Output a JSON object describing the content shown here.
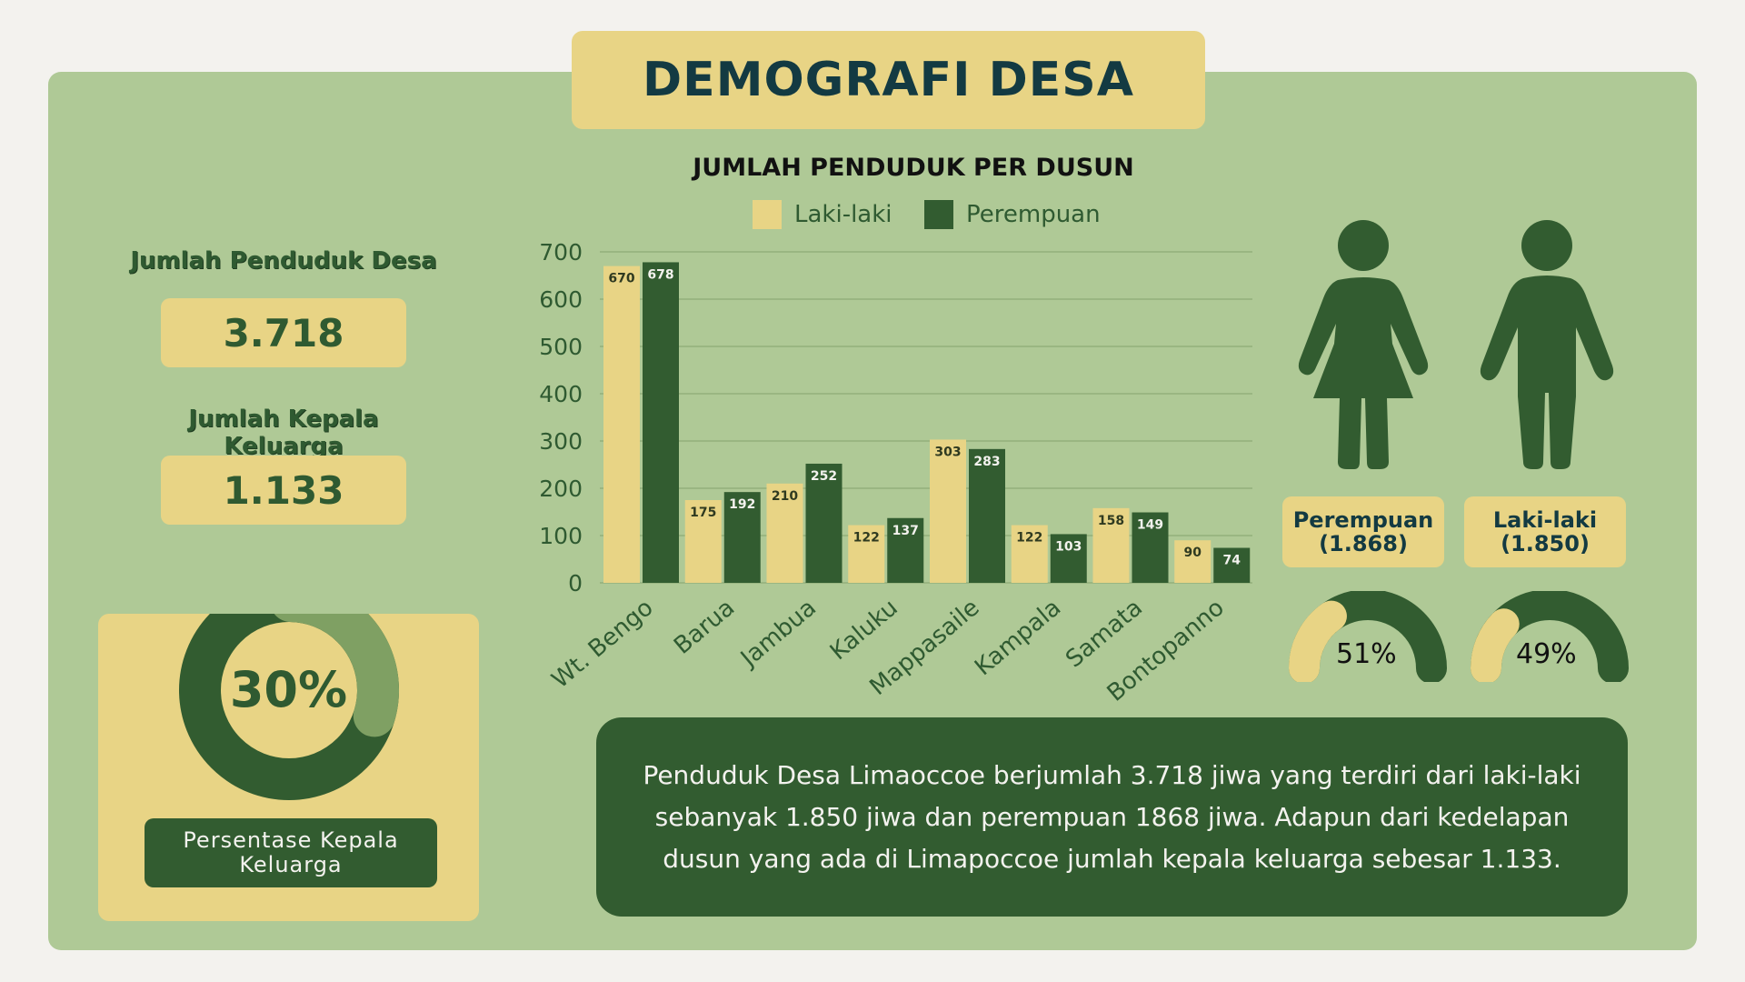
{
  "title": "DEMOGRAFI DESA",
  "stats": {
    "population_label": "Jumlah Penduduk Desa",
    "population_value": "3.718",
    "households_label": "Jumlah Kepala Keluarga",
    "households_value": "1.133"
  },
  "household_share": {
    "percent": 30,
    "label": "30%",
    "caption": "Persentase Kepala Keluarga"
  },
  "gender": {
    "female_label": "Perempuan",
    "female_count": "(1.868)",
    "female_percent": 51,
    "female_percent_label": "51%",
    "male_label": "Laki-laki",
    "male_count": "(1.850)",
    "male_percent": 49,
    "male_percent_label": "49%"
  },
  "summary": "Penduduk Desa Limaoccoe berjumlah 3.718 jiwa yang terdiri dari laki-laki sebanyak 1.850 jiwa dan perempuan 1868 jiwa. Adapun dari kedelapan dusun yang ada di Limapoccoe jumlah kepala keluarga sebesar 1.133.",
  "colors": {
    "light": "#e8d485",
    "dark": "#325c30",
    "mid": "#7fa063",
    "panel": "#afc996",
    "title": "#133a42"
  },
  "chart_data": {
    "type": "bar",
    "title": "JUMLAH PENDUDUK PER DUSUN",
    "categories": [
      "Wt. Bengo",
      "Barua",
      "Jambua",
      "Kaluku",
      "Mappasaile",
      "Kampala",
      "Samata",
      "Bontopanno"
    ],
    "series": [
      {
        "name": "Laki-laki",
        "color": "#e8d485",
        "values": [
          670,
          175,
          210,
          122,
          303,
          122,
          158,
          90
        ]
      },
      {
        "name": "Perempuan",
        "color": "#325c30",
        "values": [
          678,
          192,
          252,
          137,
          283,
          103,
          149,
          74
        ]
      }
    ],
    "yticks": [
      0,
      100,
      200,
      300,
      400,
      500,
      600,
      700
    ],
    "ylim": [
      0,
      700
    ],
    "legend": "top",
    "grid": true
  }
}
